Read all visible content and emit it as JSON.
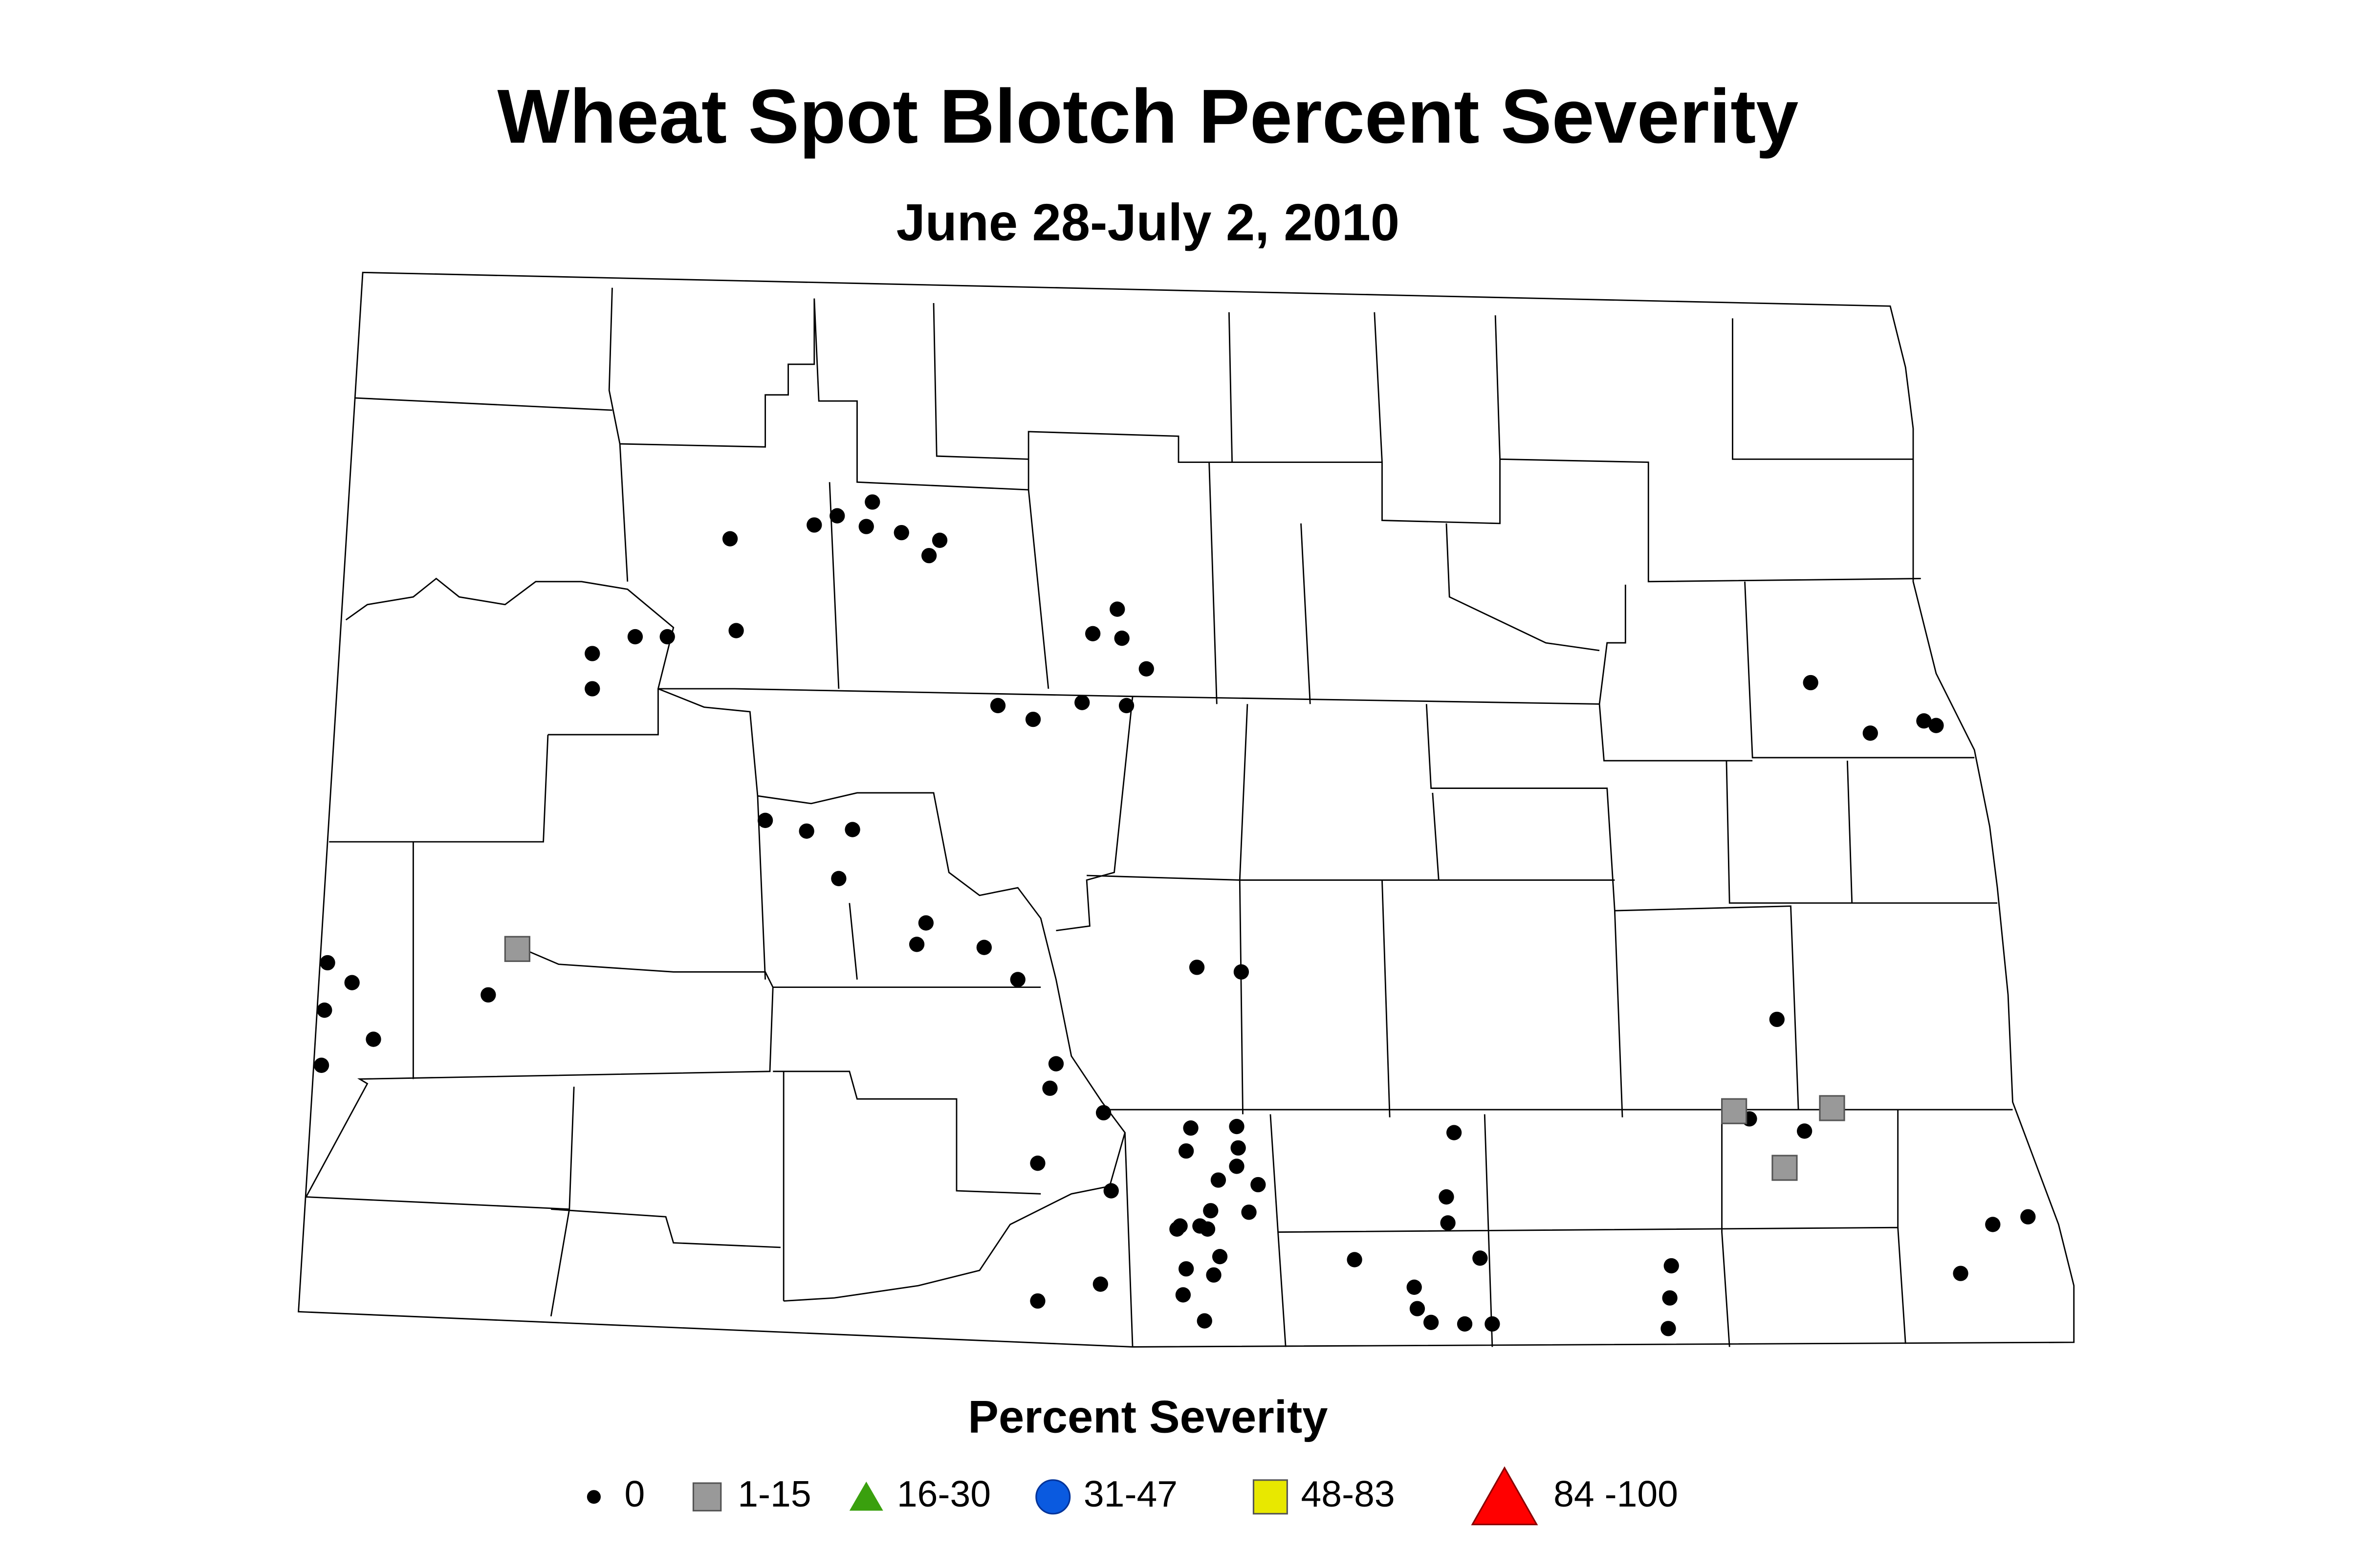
{
  "title": "Wheat Spot Blotch Percent Severity",
  "subtitle": "June 28-July 2, 2010",
  "legend": {
    "title": "Percent Severity",
    "items": [
      {
        "label": "0"
      },
      {
        "label": "1-15"
      },
      {
        "label": "16-30"
      },
      {
        "label": "31-47"
      },
      {
        "label": "48-83"
      },
      {
        "label": "84 -100"
      }
    ]
  }
}
